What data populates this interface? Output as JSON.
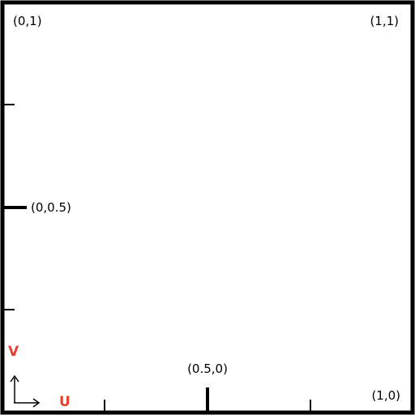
{
  "colors": {
    "border": "#000000",
    "axis_label": "#e8402f",
    "background": "#ffffff"
  },
  "corner_labels": {
    "top_left": "(0,1)",
    "top_right": "(1,1)",
    "bottom_right": "(1,0)"
  },
  "midpoint_labels": {
    "left": "(0,0.5)",
    "bottom": "(0.5,0)"
  },
  "axis_labels": {
    "u": "U",
    "v": "V"
  },
  "icons": {
    "axes": "uv-axes-icon"
  }
}
